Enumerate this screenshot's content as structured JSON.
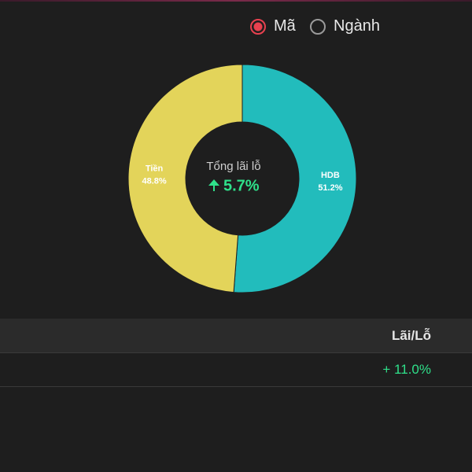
{
  "radio": {
    "options": [
      "Mã",
      "Ngành"
    ],
    "selected": 0
  },
  "chart_data": {
    "type": "pie",
    "center_title": "Tổng lãi lỗ",
    "center_value": "5.7%",
    "categories": [
      "HDB",
      "Tiền"
    ],
    "values": [
      51.2,
      48.8
    ],
    "value_labels": [
      "51.2%",
      "48.8%"
    ],
    "colors": [
      "#22bcbc",
      "#e3d45a"
    ]
  },
  "table": {
    "header": [
      "Lãi/Lỗ"
    ],
    "rows": [
      [
        "+ 11.0%"
      ]
    ]
  }
}
